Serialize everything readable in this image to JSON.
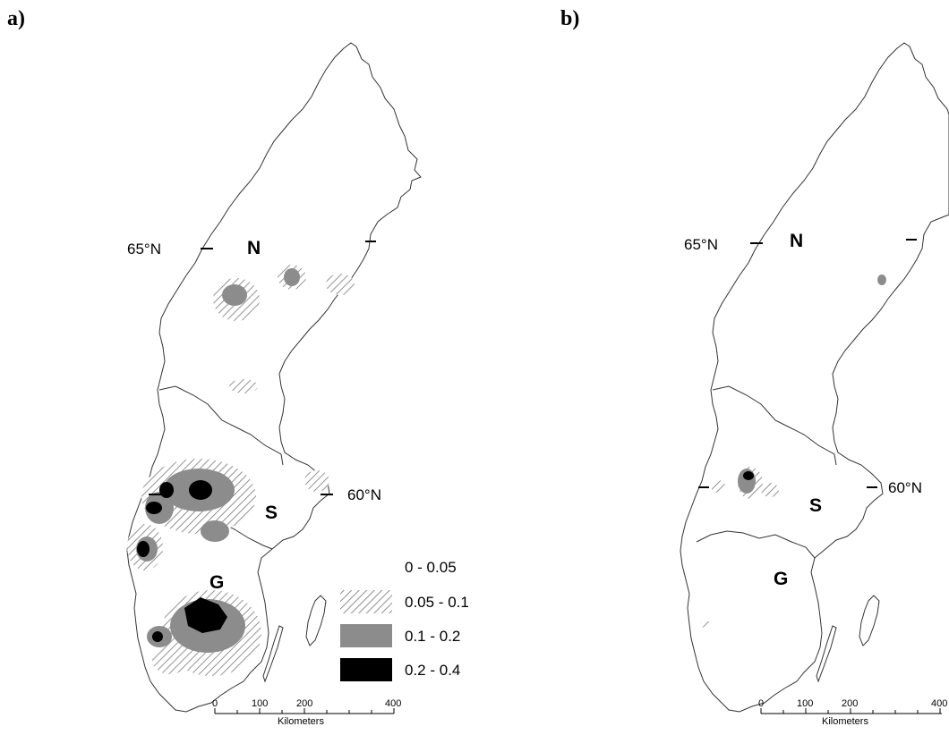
{
  "colors": {
    "outline": "#333333",
    "hatch": "#777777",
    "grey": "#8c8c8c",
    "black": "#000000"
  },
  "panel_a": {
    "label": "a)",
    "lat_north": "65°N",
    "lat_south": "60°N",
    "regions": {
      "north": "N",
      "south": "S",
      "gotaland": "G"
    },
    "scale": {
      "ticks": [
        "0",
        "100",
        "200",
        "400"
      ],
      "unit": "Kilometers"
    },
    "legend": [
      {
        "label": "0 - 0.05",
        "fill": "none"
      },
      {
        "label": "0.05 - 0.1",
        "fill": "hatch"
      },
      {
        "label": "0.1 - 0.2",
        "fill": "grey"
      },
      {
        "label": "0.2 - 0.4",
        "fill": "black"
      }
    ]
  },
  "panel_b": {
    "label": "b)",
    "lat_north": "65°N",
    "lat_south": "60°N",
    "regions": {
      "north": "N",
      "south": "S",
      "gotaland": "G"
    },
    "scale": {
      "ticks": [
        "0",
        "100",
        "200",
        "400"
      ],
      "unit": "Kilometers"
    }
  }
}
